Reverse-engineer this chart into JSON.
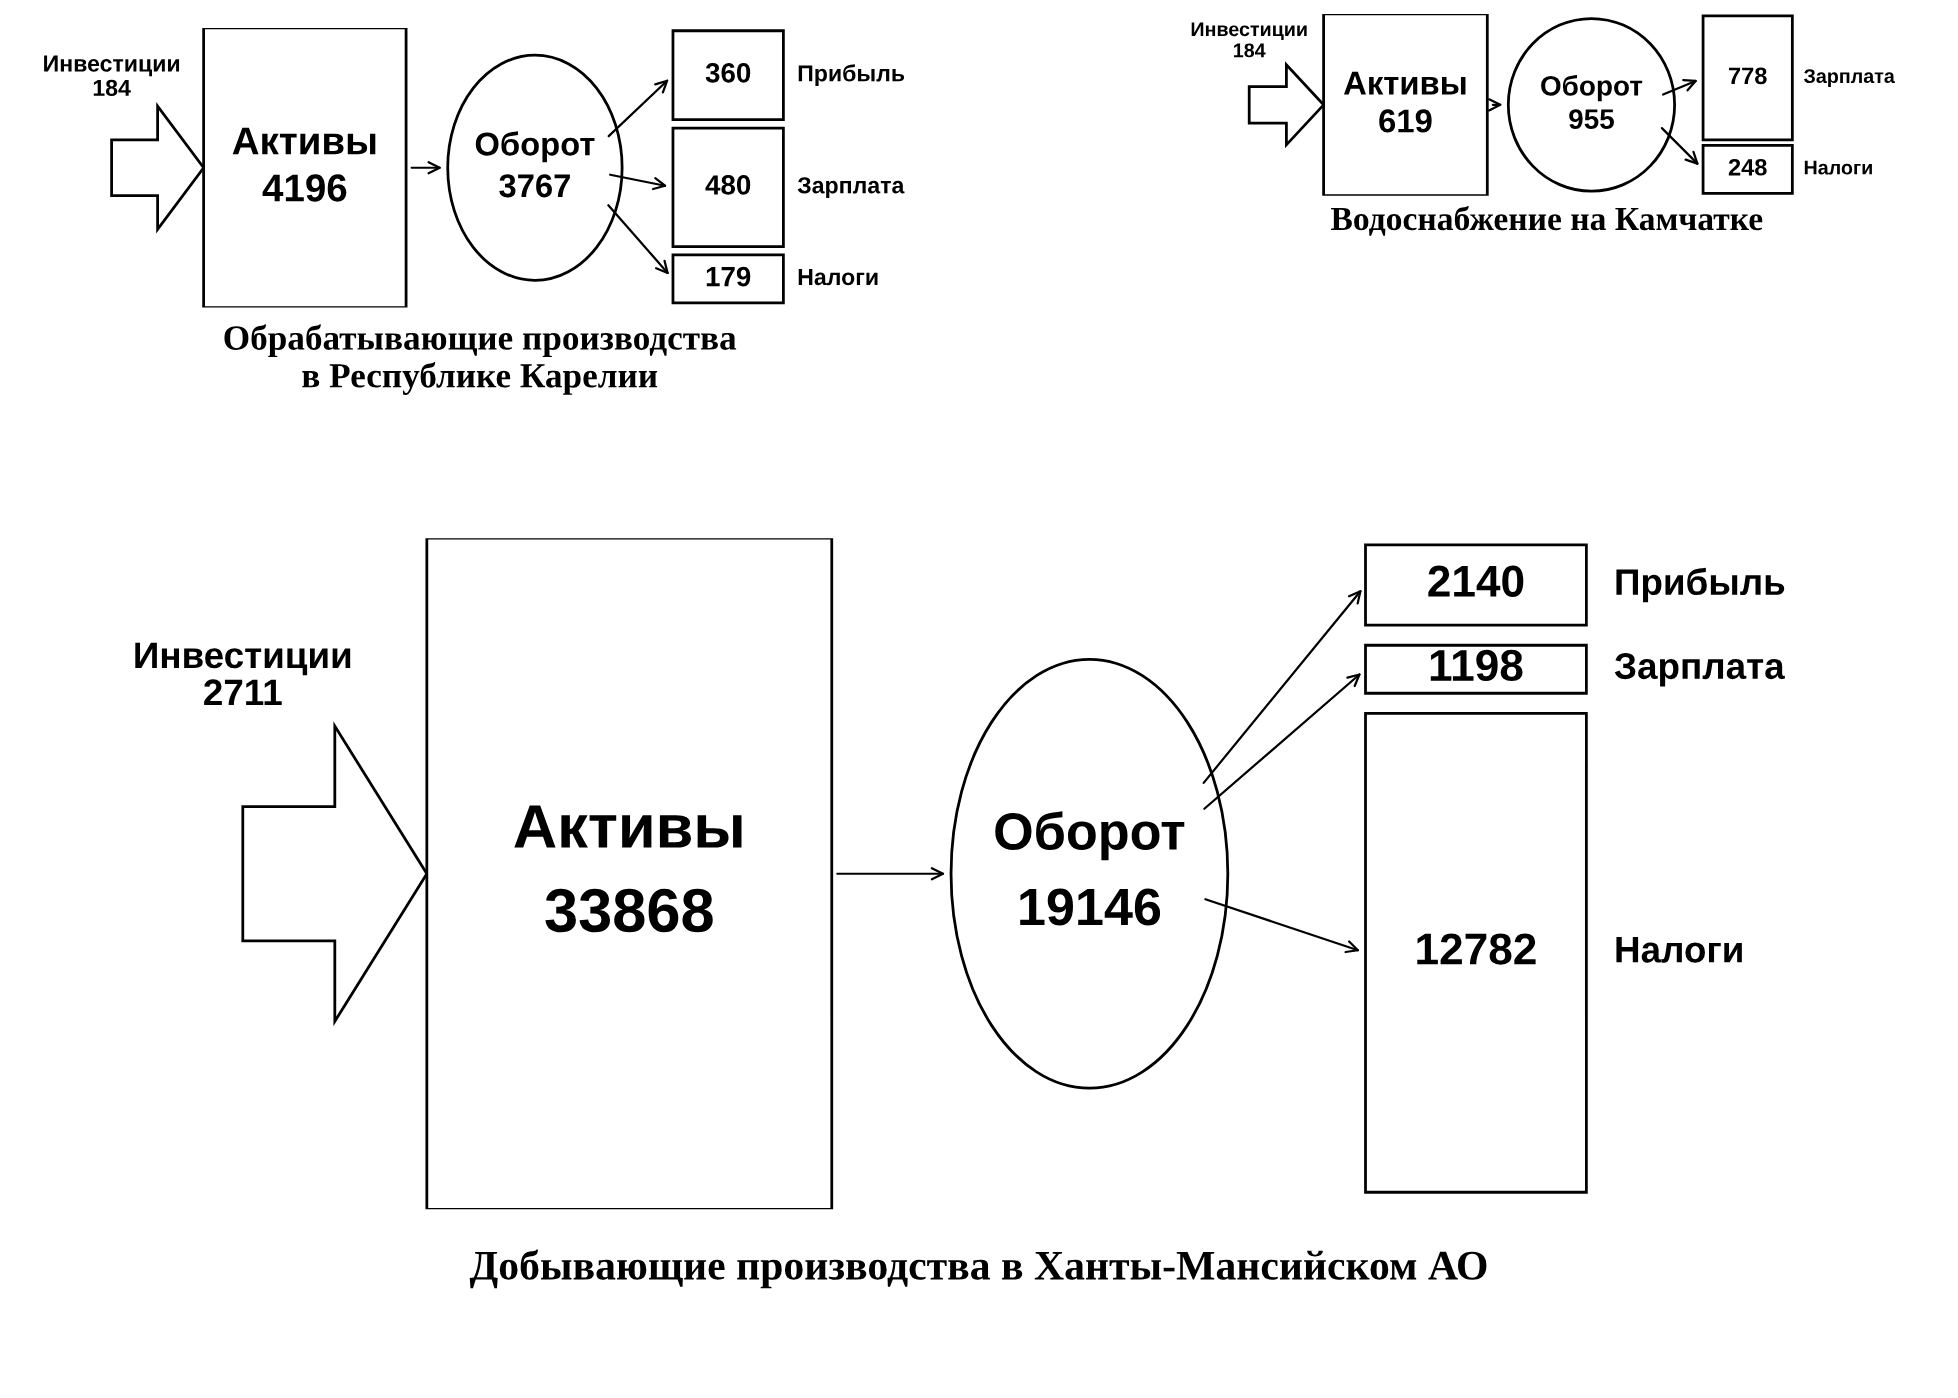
{
  "chart_data": [
    {
      "type": "other",
      "data_labels": true,
      "title": "Обрабатывающие производства\nв Республике Карелии",
      "categories": [
        "Инвестиции",
        "Активы",
        "Оборот",
        "Прибыль",
        "Зарплата",
        "Налоги"
      ],
      "values": [
        184,
        4196,
        3767,
        360,
        480,
        179
      ]
    },
    {
      "type": "other",
      "data_labels": true,
      "title": "Водоснабжение на Камчатке",
      "categories": [
        "Инвестиции",
        "Активы",
        "Оборот",
        "Зарплата",
        "Налоги"
      ],
      "values": [
        184,
        619,
        955,
        778,
        248
      ]
    },
    {
      "type": "other",
      "data_labels": true,
      "title": "Добывающие производства в Ханты-Мансийском АО",
      "categories": [
        "Инвестиции",
        "Активы",
        "Оборот",
        "Прибыль",
        "Зарплата",
        "Налоги"
      ],
      "values": [
        2711,
        33868,
        19146,
        2140,
        1198,
        12782
      ]
    }
  ]
}
